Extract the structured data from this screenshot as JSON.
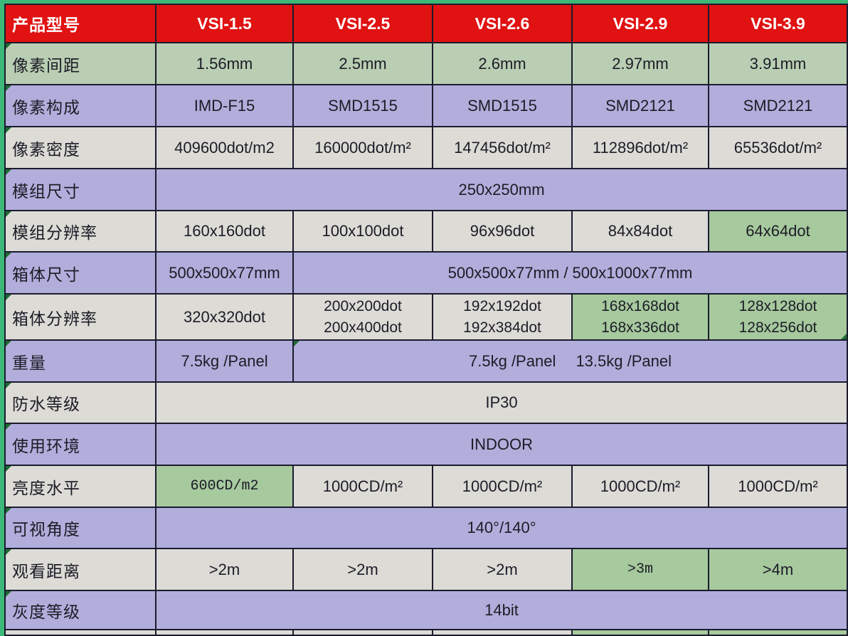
{
  "colors": {
    "background_chroma": "#3cb878",
    "header_red": "#e01212",
    "header_text": "#ffffff",
    "row_green": "#b9ceb3",
    "accent_green": "#a6c99e",
    "lavender": "#b1aedc",
    "light_gray": "#dddbd6",
    "grid_border": "#1b1b2e",
    "corner_triangle_green": "#1e6b33",
    "body_text": "#1c1c26"
  },
  "table": {
    "header": {
      "label": "产品型号",
      "models": [
        "VSI-1.5",
        "VSI-2.5",
        "VSI-2.6",
        "VSI-2.9",
        "VSI-3.9"
      ]
    },
    "rows": [
      {
        "label": "像素间距",
        "cells": [
          "1.56mm",
          "2.5mm",
          "2.6mm",
          "2.97mm",
          "3.91mm"
        ]
      },
      {
        "label": "像素构成",
        "cells": [
          "IMD-F15",
          "SMD1515",
          "SMD1515",
          "SMD2121",
          "SMD2121"
        ]
      },
      {
        "label": "像素密度",
        "cells": [
          "409600dot/m2",
          "160000dot/m²",
          "147456dot/m²",
          "112896dot/m²",
          "65536dot/m²"
        ]
      },
      {
        "label": "模组尺寸",
        "span": "250x250mm"
      },
      {
        "label": "模组分辨率",
        "cells": [
          "160x160dot",
          "100x100dot",
          "96x96dot",
          "84x84dot",
          "64x64dot"
        ]
      },
      {
        "label": "箱体尺寸",
        "first": "500x500x77mm",
        "span": "500x500x77mm / 500x1000x77mm"
      },
      {
        "label": "箱体分辨率",
        "cells": [
          "320x320dot",
          "200x200dot\n200x400dot",
          "192x192dot\n192x384dot",
          "168x168dot\n168x336dot",
          "128x128dot\n128x256dot"
        ]
      },
      {
        "label": "重量",
        "first": "7.5kg /Panel",
        "span": "7.5kg /Panel  13.5kg /Panel"
      },
      {
        "label": "防水等级",
        "span": "IP30"
      },
      {
        "label": "使用环境",
        "span": "INDOOR"
      },
      {
        "label": "亮度水平",
        "cells": [
          "600CD/m2",
          "1000CD/m²",
          "1000CD/m²",
          "1000CD/m²",
          "1000CD/m²"
        ]
      },
      {
        "label": "可视角度",
        "span": "140°/140°"
      },
      {
        "label": "观看距离",
        "cells": [
          ">2m",
          ">2m",
          ">2m",
          ">3m",
          ">4m"
        ]
      },
      {
        "label": "灰度等级",
        "span": "14bit"
      }
    ]
  }
}
